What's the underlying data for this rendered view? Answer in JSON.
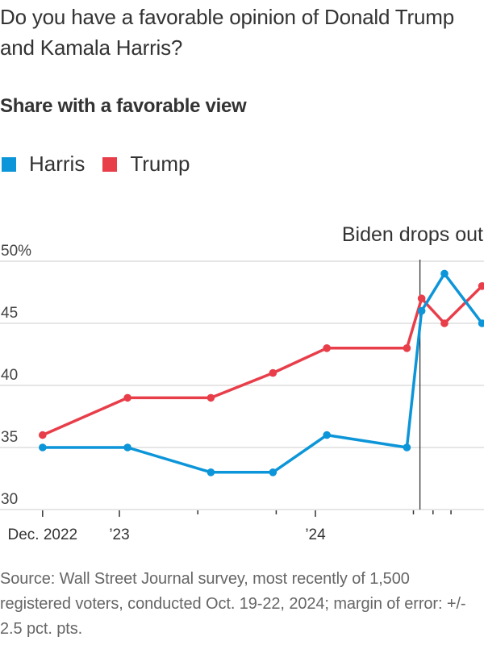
{
  "header": {
    "question": "Do you have a favorable opinion of Donald Trump and Kamala Harris?",
    "subtitle": "Share with a favorable view"
  },
  "legend": [
    {
      "label": "Harris",
      "color": "#0c95d8"
    },
    {
      "label": "Trump",
      "color": "#e83e4a"
    }
  ],
  "chart_data": {
    "type": "line",
    "title": "Share with a favorable view",
    "xlabel": "",
    "ylabel": "",
    "x_units": "months since Jan. 2023 (approximate)",
    "ylim": [
      30,
      50
    ],
    "yticks": [
      {
        "value": 50,
        "label": "50%"
      },
      {
        "value": 45,
        "label": "45"
      },
      {
        "value": 40,
        "label": "40"
      },
      {
        "value": 35,
        "label": "35"
      },
      {
        "value": 30,
        "label": "30"
      }
    ],
    "xlim": [
      -5.5,
      22.3
    ],
    "xticks": [
      {
        "x": -4.7,
        "label": "Dec. 2022",
        "major": true
      },
      {
        "x": 0,
        "label": "’23",
        "major": true
      },
      {
        "x": 4.8,
        "label": "",
        "major": false
      },
      {
        "x": 9.6,
        "label": "",
        "major": false
      },
      {
        "x": 12,
        "label": "’24",
        "major": true
      },
      {
        "x": 18,
        "label": "",
        "major": false
      },
      {
        "x": 19.2,
        "label": "",
        "major": false
      },
      {
        "x": 20.3,
        "label": "",
        "major": false
      }
    ],
    "grid": true,
    "legend_position": "top-left",
    "x": [
      -4.7,
      0.5,
      5.6,
      9.4,
      12.7,
      17.6,
      18.5,
      19.9,
      22.2
    ],
    "series": [
      {
        "name": "Harris",
        "color": "#0c95d8",
        "values": [
          35,
          35,
          33,
          33,
          36,
          35,
          46,
          49,
          45
        ]
      },
      {
        "name": "Trump",
        "color": "#e83e4a",
        "values": [
          36,
          39,
          39,
          41,
          43,
          43,
          47,
          45,
          48
        ]
      }
    ],
    "annotations": [
      {
        "x": 18.4,
        "label": "Biden drops out",
        "type": "vertical-line"
      }
    ]
  },
  "footer": {
    "source": "Source: Wall Street Journal survey, most recently of 1,500 registered voters, conducted Oct. 19-22, 2024; margin of error: +/- 2.5 pct. pts."
  }
}
